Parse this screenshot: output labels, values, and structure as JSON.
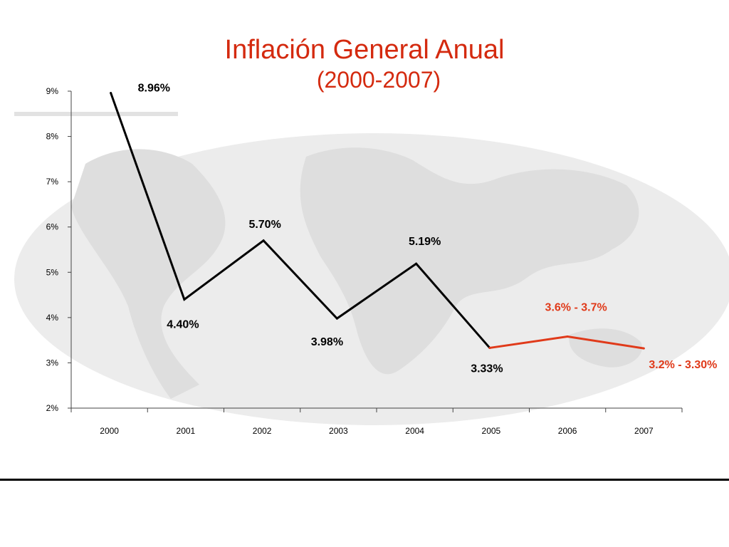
{
  "chart_data": {
    "type": "line",
    "title": "Inflación General Anual",
    "subtitle": "(2000-2007)",
    "xlabel": "",
    "ylabel": "",
    "categories": [
      "2000",
      "2001",
      "2002",
      "2003",
      "2004",
      "2005",
      "2006",
      "2007"
    ],
    "y_ticks": [
      "9%",
      "8%",
      "7%",
      "6%",
      "5%",
      "4%",
      "3%",
      "2%"
    ],
    "ylim": [
      2,
      9
    ],
    "grid": false,
    "series": [
      {
        "x": [
          2000,
          2001,
          2002,
          2003,
          2004,
          2005
        ],
        "values": [
          8.96,
          4.4,
          5.7,
          3.98,
          5.19,
          3.33
        ],
        "labels": [
          "8.96%",
          "4.40%",
          "5.70%",
          "3.98%",
          "5.19%",
          "3.33%"
        ],
        "color": "#000000"
      },
      {
        "x": [
          2005,
          2006,
          2007
        ],
        "values": [
          3.33,
          3.58,
          3.32
        ],
        "labels": [
          "",
          "3.6% - 3.7%",
          "3.2% - 3.30%"
        ],
        "color": "#e03a1a"
      }
    ],
    "background": "world-map-watermark"
  }
}
